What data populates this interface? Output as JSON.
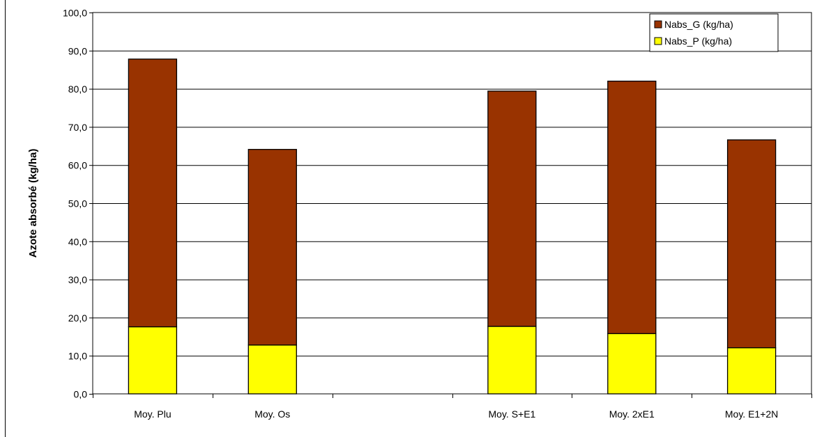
{
  "chart_data": {
    "type": "bar",
    "stacked": true,
    "categories": [
      "Moy. Plu",
      "Moy. Os",
      "",
      "Moy. S+E1",
      "Moy. 2xE1",
      "Moy. E1+2N"
    ],
    "series": [
      {
        "name": "Nabs_P (kg/ha)",
        "color": "#ffff00",
        "values": [
          17.6,
          12.8,
          null,
          17.7,
          15.8,
          12.1
        ]
      },
      {
        "name": "Nabs_G (kg/ha)",
        "color": "#993300",
        "values": [
          70.2,
          51.3,
          null,
          61.7,
          66.2,
          54.5
        ]
      }
    ],
    "title": "",
    "xlabel": "",
    "ylabel": "Azote absorbé (kg/ha)",
    "ylim": [
      0,
      100
    ],
    "yticks": [
      "0,0",
      "10,0",
      "20,0",
      "30,0",
      "40,0",
      "50,0",
      "60,0",
      "70,0",
      "80,0",
      "90,0",
      "100,0"
    ],
    "grid": true,
    "legend_position": "top-right",
    "legend_order": [
      "Nabs_G (kg/ha)",
      "Nabs_P (kg/ha)"
    ]
  }
}
